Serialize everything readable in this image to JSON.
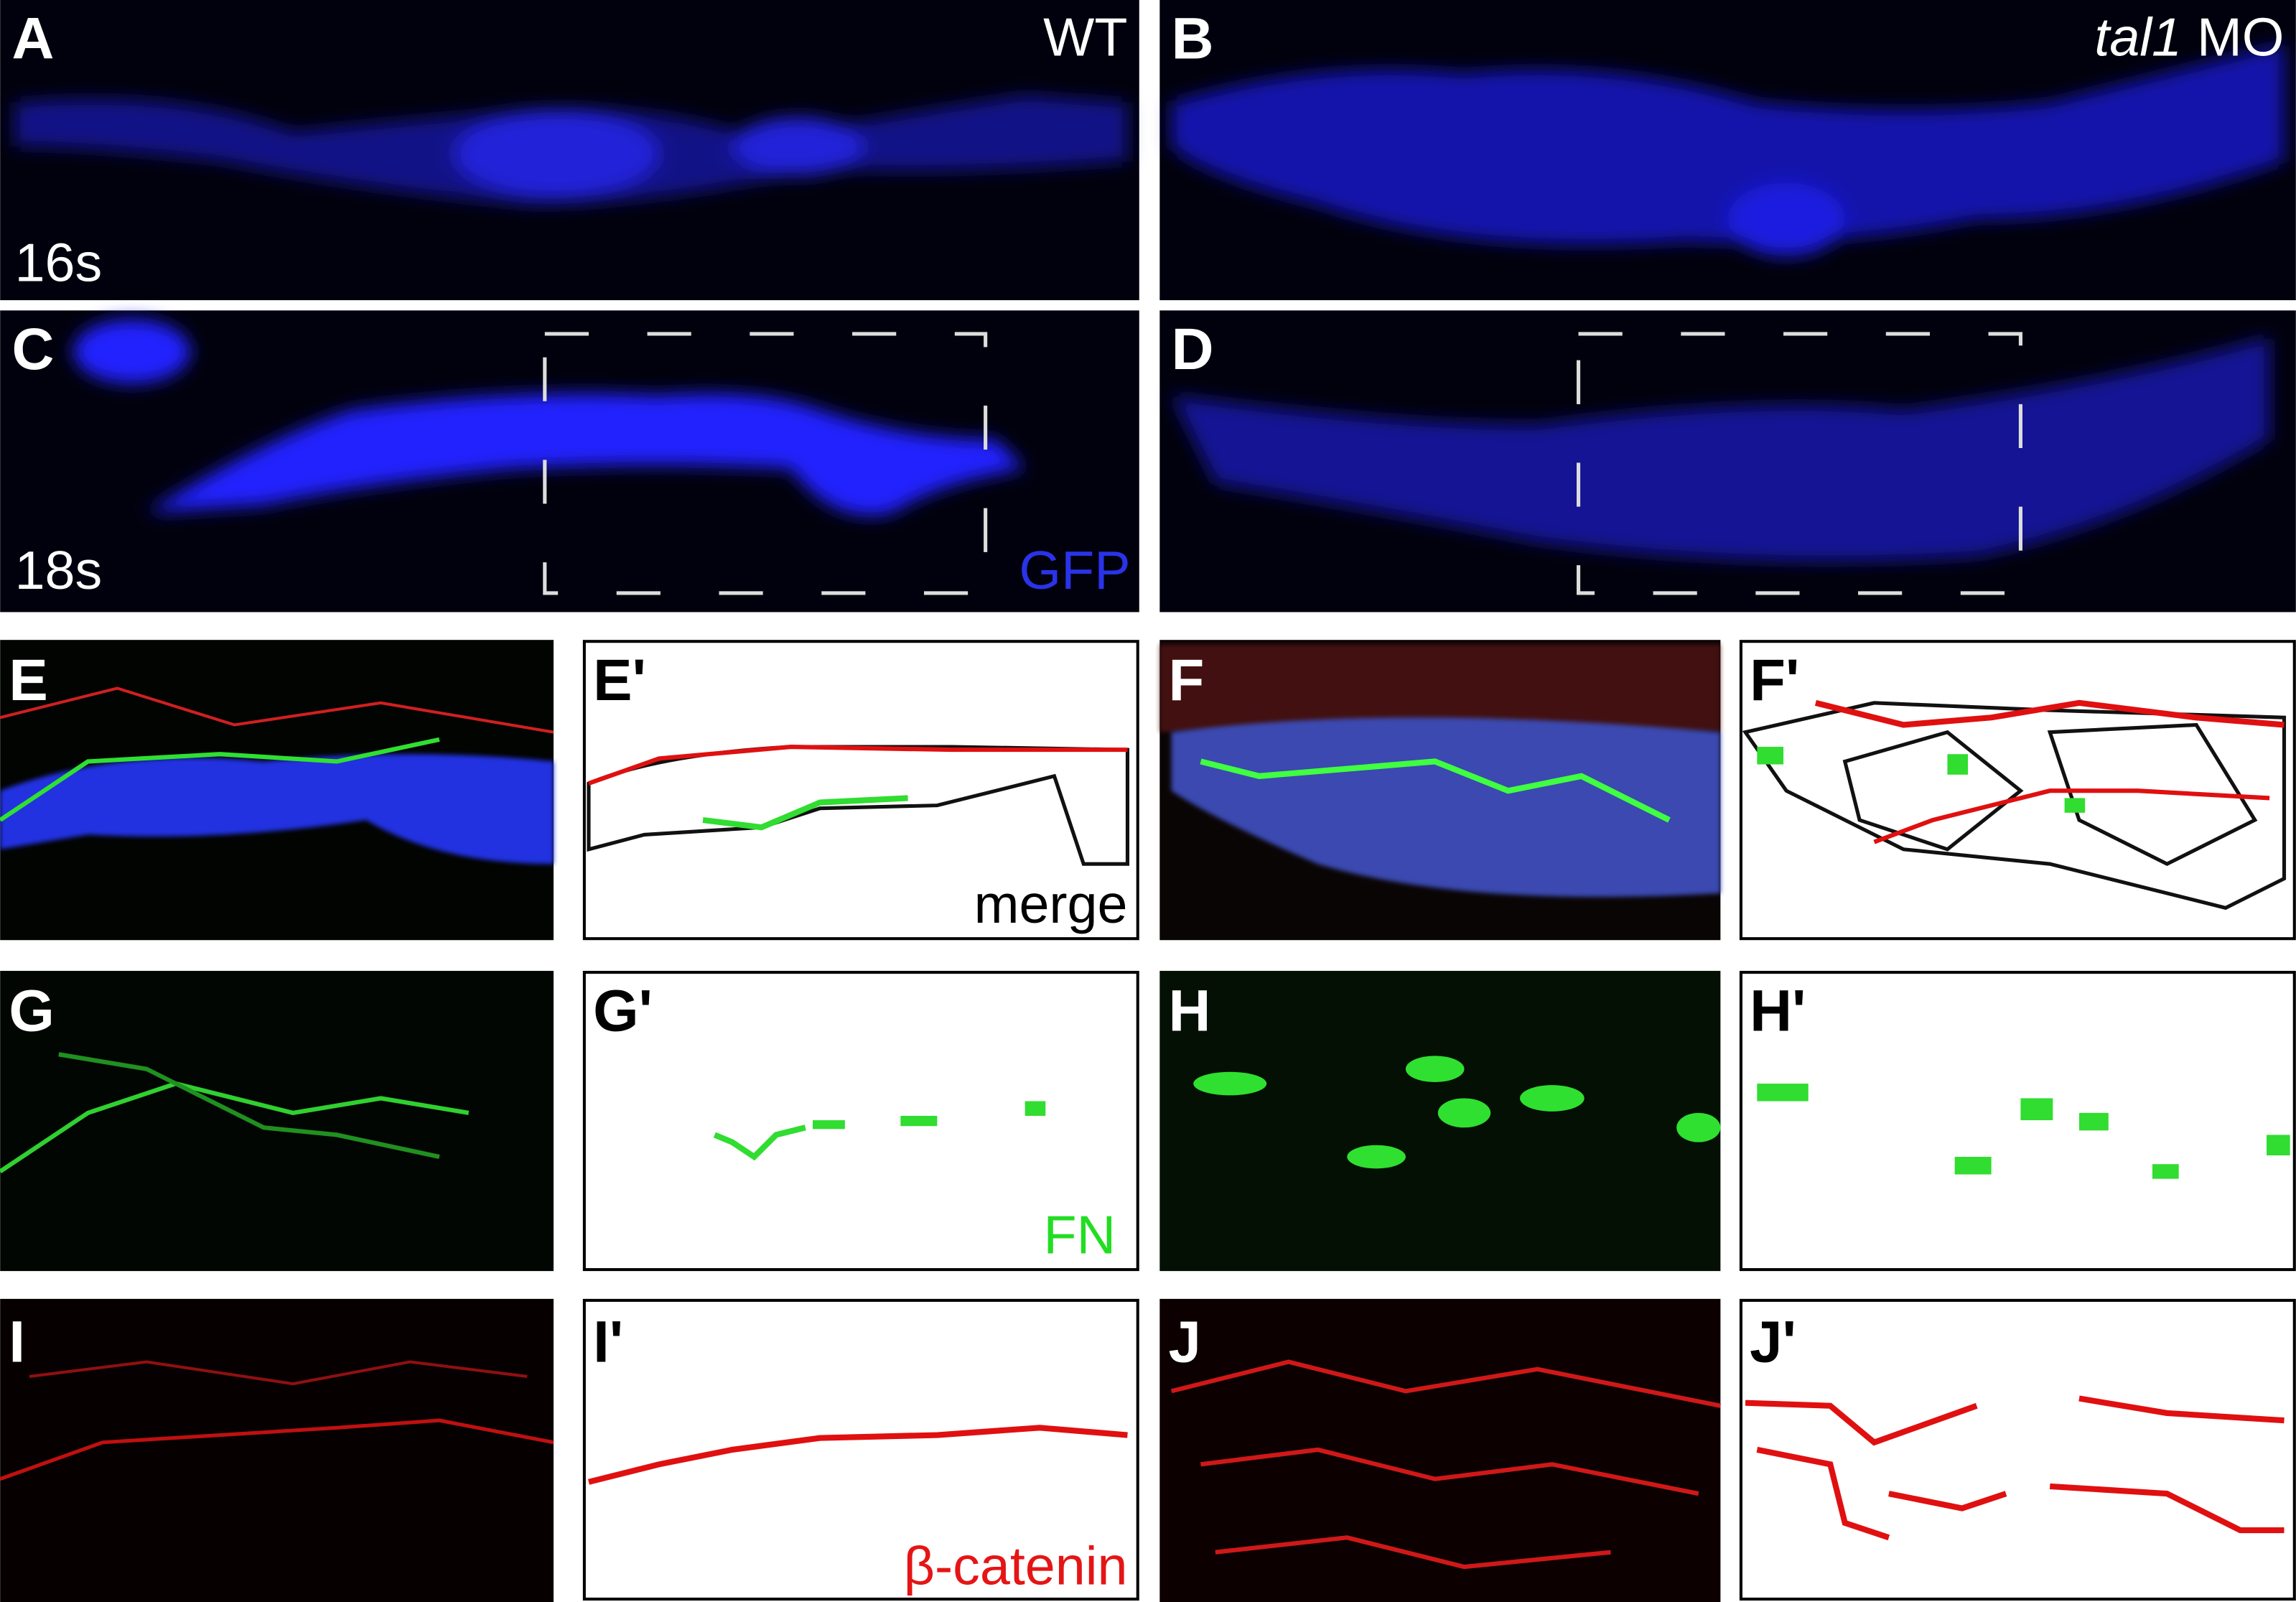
{
  "panels": [
    {
      "label": "A",
      "condition": "WT",
      "stage": "16s"
    },
    {
      "label": "B",
      "condition": {
        "gene": "tal1",
        "suffix": "MO"
      }
    },
    {
      "label": "C",
      "stage": "18s",
      "stain": "GFP"
    },
    {
      "label": "D"
    },
    {
      "label": "E"
    },
    {
      "label": "E'",
      "stain": "merge"
    },
    {
      "label": "F"
    },
    {
      "label": "F'"
    },
    {
      "label": "G"
    },
    {
      "label": "G'",
      "stain": "FN"
    },
    {
      "label": "H"
    },
    {
      "label": "H'"
    },
    {
      "label": "I"
    },
    {
      "label": "I'",
      "stain": "β-catenin"
    },
    {
      "label": "J"
    },
    {
      "label": "J'"
    }
  ]
}
